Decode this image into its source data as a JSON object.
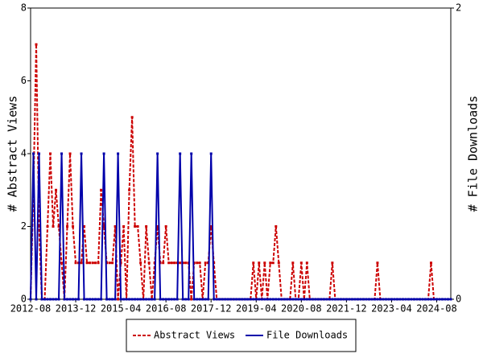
{
  "chart_data": {
    "type": "line",
    "y_label": "# Abstract Views",
    "y2_label": "# File Downloads",
    "categories": [
      "2012-08",
      null,
      null,
      null,
      null,
      null,
      null,
      null,
      null,
      null,
      null,
      null,
      null,
      null,
      null,
      null,
      "2013-12",
      null,
      null,
      null,
      null,
      null,
      null,
      null,
      null,
      null,
      null,
      null,
      null,
      null,
      null,
      null,
      "2015-04",
      null,
      null,
      null,
      null,
      null,
      null,
      null,
      null,
      null,
      null,
      null,
      null,
      null,
      null,
      null,
      "2016-08",
      null,
      null,
      null,
      null,
      null,
      null,
      null,
      null,
      null,
      null,
      null,
      null,
      null,
      null,
      null,
      "2017-12",
      null,
      null,
      null,
      null,
      null,
      null,
      null,
      null,
      null,
      null,
      null,
      null,
      null,
      null,
      null,
      "2019-04",
      null,
      null,
      null,
      null,
      null,
      null,
      null,
      null,
      null,
      null,
      null,
      null,
      null,
      null,
      null,
      "2020-08",
      null,
      null,
      null,
      null,
      null,
      null,
      null,
      null,
      null,
      null,
      null,
      null,
      null,
      null,
      null,
      "2021-12",
      null,
      null,
      null,
      null,
      null,
      null,
      null,
      null,
      null,
      null,
      null,
      null,
      null,
      null,
      null,
      "2023-04",
      null,
      null,
      null,
      null,
      null,
      null,
      null,
      null,
      null,
      null,
      null,
      null,
      null,
      null,
      null,
      "2024-08",
      null,
      null,
      null,
      null,
      null
    ],
    "series": [
      {
        "name": "Abstract Views",
        "color": "#cc0000",
        "dashed": true,
        "values": [
          0,
          3,
          7,
          2,
          0,
          0,
          2,
          4,
          2,
          3,
          2,
          1,
          0,
          2,
          4,
          2,
          1,
          1,
          1,
          2,
          1,
          1,
          1,
          1,
          1,
          3,
          2,
          1,
          1,
          1,
          2,
          0,
          1,
          2,
          0,
          3,
          5,
          2,
          2,
          1,
          0,
          2,
          1,
          0,
          1,
          2,
          1,
          1,
          2,
          1,
          1,
          1,
          1,
          1,
          1,
          1,
          1,
          0,
          1,
          1,
          1,
          0,
          1,
          1,
          2,
          1,
          0,
          0,
          0,
          0,
          0,
          0,
          0,
          0,
          0,
          0,
          0,
          0,
          0,
          1,
          0,
          1,
          0,
          1,
          0,
          1,
          1,
          2,
          1,
          0,
          0,
          0,
          0,
          1,
          0,
          0,
          1,
          0,
          1,
          0,
          0,
          0,
          0,
          0,
          0,
          0,
          0,
          1,
          0,
          0,
          0,
          0,
          0,
          0,
          0,
          0,
          0,
          0,
          0,
          0,
          0,
          0,
          0,
          1,
          0,
          0,
          0,
          0,
          0,
          0,
          0,
          0,
          0,
          0,
          0,
          0,
          0,
          0,
          0,
          0,
          0,
          0,
          1,
          0,
          0,
          0,
          0,
          0,
          0,
          0
        ]
      },
      {
        "name": "File Downloads",
        "color": "#0000aa",
        "dashed": false,
        "axis": "y2",
        "values": [
          0,
          1,
          0,
          1,
          0,
          0,
          0,
          0,
          0,
          0,
          0,
          1,
          0,
          0,
          0,
          0,
          0,
          0,
          1,
          0,
          0,
          0,
          0,
          0,
          0,
          0,
          1,
          0,
          0,
          0,
          0,
          1,
          0,
          0,
          0,
          0,
          0,
          0,
          0,
          0,
          0,
          0,
          0,
          0,
          0,
          1,
          0,
          0,
          0,
          0,
          0,
          0,
          0,
          1,
          0,
          0,
          0,
          1,
          0,
          0,
          0,
          0,
          0,
          0,
          1,
          0,
          0,
          0,
          0,
          0,
          0,
          0,
          0,
          0,
          0,
          0,
          0,
          0,
          0,
          0,
          0,
          0,
          0,
          0,
          0,
          0,
          0,
          0,
          0,
          0,
          0,
          0,
          0,
          0,
          0,
          0,
          0,
          0,
          0,
          0,
          0,
          0,
          0,
          0,
          0,
          0,
          0,
          0,
          0,
          0,
          0,
          0,
          0,
          0,
          0,
          0,
          0,
          0,
          0,
          0,
          0,
          0,
          0,
          0,
          0,
          0,
          0,
          0,
          0,
          0,
          0,
          0,
          0,
          0,
          0,
          0,
          0,
          0,
          0,
          0,
          0,
          0,
          0,
          0,
          0,
          0,
          0,
          0,
          0,
          0
        ]
      }
    ],
    "ylim": [
      0,
      8
    ],
    "yticks": [
      0,
      2,
      4,
      6,
      8
    ],
    "y2lim": [
      0,
      2
    ],
    "y2ticks": [
      0,
      2
    ],
    "legend": "bottom"
  }
}
